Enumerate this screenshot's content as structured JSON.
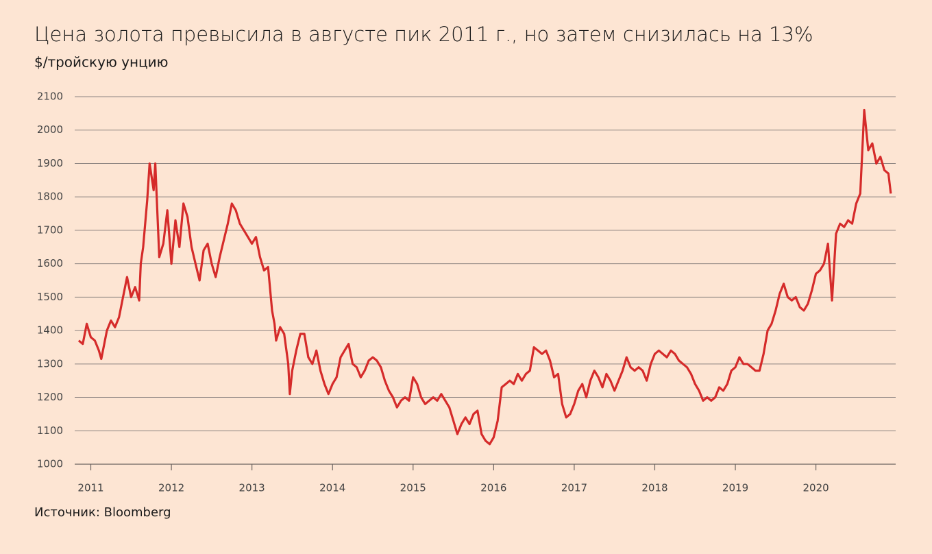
{
  "chart_data": {
    "type": "line",
    "title": "Цена золота превысила в августе пик 2011 г., но затем снизилась на 13%",
    "subtitle": "$/тройскую унцию",
    "source": "Источник: Bloomberg",
    "color": "#d52b2a",
    "grid": true,
    "xlim": [
      2010.8,
      2020.99
    ],
    "xticks": [
      2011,
      2012,
      2013,
      2014,
      2015,
      2016,
      2017,
      2018,
      2019,
      2020
    ],
    "ylim": [
      1000,
      2100
    ],
    "yticks": [
      1000,
      1100,
      1200,
      1300,
      1400,
      1500,
      1600,
      1700,
      1800,
      1900,
      2000,
      2100
    ],
    "x": [
      2010.85,
      2010.9,
      2010.95,
      2011.0,
      2011.05,
      2011.1,
      2011.13,
      2011.2,
      2011.25,
      2011.3,
      2011.35,
      2011.4,
      2011.45,
      2011.5,
      2011.55,
      2011.6,
      2011.62,
      2011.65,
      2011.7,
      2011.73,
      2011.78,
      2011.8,
      2011.85,
      2011.9,
      2011.95,
      2012.0,
      2012.05,
      2012.1,
      2012.15,
      2012.2,
      2012.25,
      2012.3,
      2012.35,
      2012.4,
      2012.45,
      2012.5,
      2012.55,
      2012.6,
      2012.65,
      2012.7,
      2012.75,
      2012.8,
      2012.85,
      2012.9,
      2012.95,
      2013.0,
      2013.05,
      2013.1,
      2013.15,
      2013.2,
      2013.25,
      2013.28,
      2013.3,
      2013.35,
      2013.4,
      2013.45,
      2013.47,
      2013.5,
      2013.55,
      2013.6,
      2013.65,
      2013.7,
      2013.75,
      2013.8,
      2013.85,
      2013.9,
      2013.95,
      2014.0,
      2014.05,
      2014.1,
      2014.15,
      2014.2,
      2014.25,
      2014.3,
      2014.35,
      2014.4,
      2014.45,
      2014.5,
      2014.55,
      2014.6,
      2014.65,
      2014.7,
      2014.75,
      2014.8,
      2014.85,
      2014.9,
      2014.95,
      2015.0,
      2015.05,
      2015.1,
      2015.15,
      2015.2,
      2015.25,
      2015.3,
      2015.35,
      2015.4,
      2015.45,
      2015.5,
      2015.55,
      2015.6,
      2015.65,
      2015.7,
      2015.75,
      2015.8,
      2015.85,
      2015.9,
      2015.95,
      2016.0,
      2016.05,
      2016.1,
      2016.15,
      2016.2,
      2016.25,
      2016.3,
      2016.35,
      2016.4,
      2016.45,
      2016.5,
      2016.55,
      2016.6,
      2016.65,
      2016.7,
      2016.75,
      2016.8,
      2016.85,
      2016.9,
      2016.95,
      2017.0,
      2017.05,
      2017.1,
      2017.15,
      2017.2,
      2017.25,
      2017.3,
      2017.35,
      2017.4,
      2017.45,
      2017.5,
      2017.55,
      2017.6,
      2017.65,
      2017.7,
      2017.75,
      2017.8,
      2017.85,
      2017.9,
      2017.95,
      2018.0,
      2018.05,
      2018.1,
      2018.15,
      2018.2,
      2018.25,
      2018.3,
      2018.35,
      2018.4,
      2018.45,
      2018.5,
      2018.55,
      2018.6,
      2018.65,
      2018.7,
      2018.75,
      2018.8,
      2018.85,
      2018.9,
      2018.95,
      2019.0,
      2019.05,
      2019.1,
      2019.15,
      2019.2,
      2019.25,
      2019.3,
      2019.35,
      2019.4,
      2019.45,
      2019.5,
      2019.55,
      2019.6,
      2019.65,
      2019.7,
      2019.75,
      2019.8,
      2019.85,
      2019.9,
      2019.95,
      2020.0,
      2020.05,
      2020.1,
      2020.15,
      2020.2,
      2020.25,
      2020.3,
      2020.35,
      2020.4,
      2020.45,
      2020.5,
      2020.55,
      2020.58,
      2020.6,
      2020.65,
      2020.7,
      2020.75,
      2020.8,
      2020.85,
      2020.9,
      2020.93
    ],
    "values": [
      1370,
      1360,
      1420,
      1380,
      1370,
      1340,
      1315,
      1400,
      1430,
      1410,
      1440,
      1500,
      1560,
      1500,
      1530,
      1490,
      1600,
      1650,
      1790,
      1900,
      1820,
      1900,
      1620,
      1660,
      1760,
      1600,
      1730,
      1650,
      1780,
      1740,
      1650,
      1600,
      1550,
      1640,
      1660,
      1600,
      1560,
      1620,
      1670,
      1720,
      1780,
      1760,
      1720,
      1700,
      1680,
      1660,
      1680,
      1620,
      1580,
      1590,
      1460,
      1420,
      1370,
      1410,
      1390,
      1300,
      1210,
      1280,
      1340,
      1390,
      1390,
      1320,
      1300,
      1340,
      1280,
      1240,
      1210,
      1240,
      1260,
      1320,
      1340,
      1360,
      1300,
      1290,
      1260,
      1280,
      1310,
      1320,
      1310,
      1290,
      1250,
      1220,
      1200,
      1170,
      1190,
      1200,
      1190,
      1260,
      1240,
      1200,
      1180,
      1190,
      1200,
      1190,
      1210,
      1190,
      1170,
      1130,
      1090,
      1120,
      1140,
      1120,
      1150,
      1160,
      1090,
      1070,
      1060,
      1080,
      1130,
      1230,
      1240,
      1250,
      1240,
      1270,
      1250,
      1270,
      1280,
      1350,
      1340,
      1330,
      1340,
      1310,
      1260,
      1270,
      1180,
      1140,
      1150,
      1180,
      1220,
      1240,
      1200,
      1250,
      1280,
      1260,
      1230,
      1270,
      1250,
      1220,
      1250,
      1280,
      1320,
      1290,
      1280,
      1290,
      1280,
      1250,
      1300,
      1330,
      1340,
      1330,
      1320,
      1340,
      1330,
      1310,
      1300,
      1290,
      1270,
      1240,
      1220,
      1190,
      1200,
      1190,
      1200,
      1230,
      1220,
      1240,
      1280,
      1290,
      1320,
      1300,
      1300,
      1290,
      1280,
      1280,
      1330,
      1400,
      1420,
      1460,
      1510,
      1540,
      1500,
      1490,
      1500,
      1470,
      1460,
      1480,
      1520,
      1570,
      1580,
      1600,
      1660,
      1490,
      1690,
      1720,
      1710,
      1730,
      1720,
      1780,
      1810,
      1960,
      2060,
      1940,
      1960,
      1900,
      1920,
      1880,
      1870,
      1810
    ]
  }
}
